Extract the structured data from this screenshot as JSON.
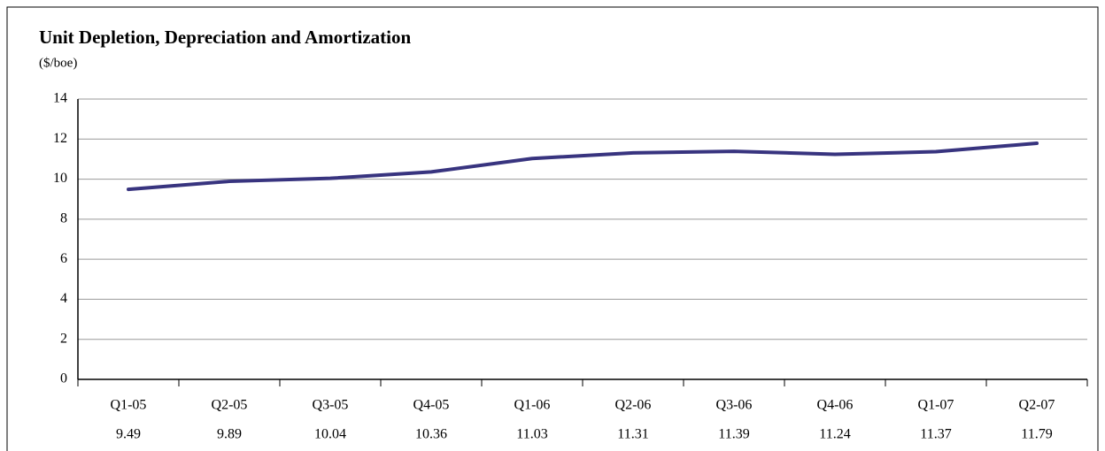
{
  "chart_data": {
    "type": "line",
    "title": "Unit Depletion, Depreciation and Amortization",
    "subtitle": "($/boe)",
    "categories": [
      "Q1-05",
      "Q2-05",
      "Q3-05",
      "Q4-05",
      "Q1-06",
      "Q2-06",
      "Q3-06",
      "Q4-06",
      "Q1-07",
      "Q2-07"
    ],
    "values": [
      9.49,
      9.89,
      10.04,
      10.36,
      11.03,
      11.31,
      11.39,
      11.24,
      11.37,
      11.79
    ],
    "color": "#38347f",
    "ylim": [
      0,
      14
    ],
    "yticks": [
      0,
      2,
      4,
      6,
      8,
      10,
      12,
      14
    ],
    "grid": true
  }
}
